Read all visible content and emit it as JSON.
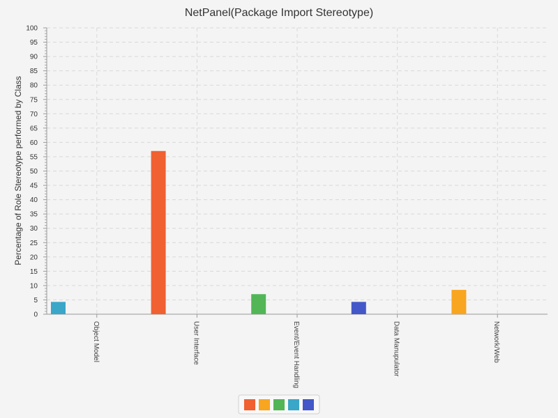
{
  "chart_data": {
    "type": "bar",
    "title": "NetPanel(Package Import Stereotype)",
    "xlabel": "",
    "ylabel": "Percentage of Role Stereotype performed by Class",
    "ylim": [
      0,
      100
    ],
    "y_major_step": 5,
    "y_minor_step": 1,
    "grid": true,
    "categories": [
      "Object Model",
      "User Interface",
      "Event/Event Handling",
      "Data Manupulator",
      "Network/Web"
    ],
    "series": [
      {
        "color": "#f06030",
        "values": [
          0,
          57,
          0,
          0,
          0
        ]
      },
      {
        "color": "#f8a520",
        "values": [
          0,
          0,
          0,
          0,
          8.5
        ]
      },
      {
        "color": "#52b656",
        "values": [
          0,
          0,
          7,
          0,
          0
        ]
      },
      {
        "color": "#3aa6c8",
        "values": [
          4.3,
          0,
          0,
          0,
          0
        ]
      },
      {
        "color": "#4357c8",
        "values": [
          0,
          0,
          0,
          4.3,
          0
        ]
      }
    ],
    "legend_placement": "bottom-center"
  }
}
